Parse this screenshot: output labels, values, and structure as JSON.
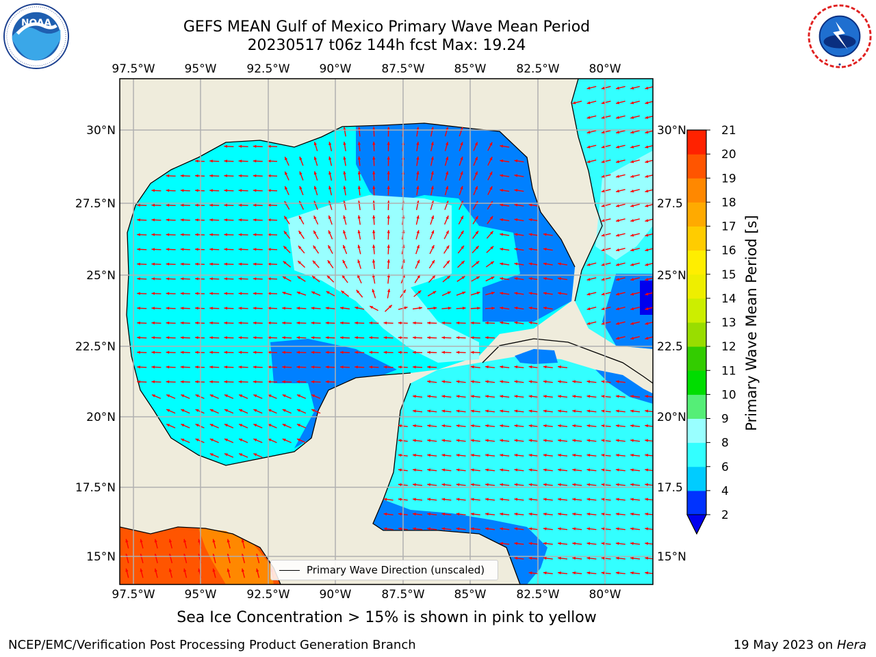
{
  "title": {
    "line1": "GEFS MEAN Gulf of Mexico Primary Wave Mean Period",
    "line2": "20230517 t06z 144h fcst   Max: 19.24"
  },
  "map": {
    "lon_labels": [
      "97.5°W",
      "95°W",
      "92.5°W",
      "90°W",
      "87.5°W",
      "85°W",
      "82.5°W",
      "80°W"
    ],
    "lat_labels": [
      "30°N",
      "27.5°N",
      "25°N",
      "22.5°N",
      "20°N",
      "17.5°N",
      "15°N"
    ],
    "lat_labels_right": [
      "30°N",
      "27.5",
      "25°N",
      "22.5",
      "20°N",
      "17.5",
      "15°N"
    ],
    "land_color": "#efecdc",
    "arrow_color": "#ff0000",
    "legend_label": "Primary Wave Direction (unscaled)"
  },
  "colorbar": {
    "title": "Primary Wave Mean Period [s]",
    "ticks": [
      "2",
      "4",
      "6",
      "8",
      "9",
      "10",
      "11",
      "12",
      "13",
      "14",
      "15",
      "16",
      "17",
      "18",
      "19",
      "20",
      "21"
    ],
    "colors": [
      "#0033ff",
      "#00ccff",
      "#33ffff",
      "#99ffff",
      "#55ee77",
      "#00dd00",
      "#33cc00",
      "#99dd00",
      "#ccee00",
      "#eeee00",
      "#ffee00",
      "#ffcc00",
      "#ffaa00",
      "#ff8800",
      "#ff5500",
      "#ff2200"
    ],
    "under_color": "#0000ee"
  },
  "ice_note": "Sea Ice Concentration > 15% is shown in pink to yellow",
  "footer": {
    "left": "NCEP/EMC/Verification Post Processing Product Generation Branch",
    "date": "19 May 2023 on",
    "machine": "Hera"
  },
  "logos": {
    "left": "noaa-logo",
    "right": "nws-logo"
  }
}
